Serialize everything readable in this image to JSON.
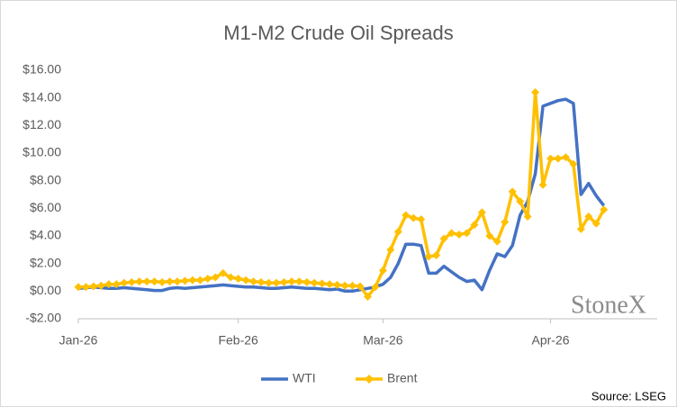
{
  "chart_data": {
    "type": "line",
    "title": "M1-M2 Crude Oil Spreads",
    "categories": [
      "Jan-26",
      null,
      null,
      null,
      null,
      null,
      null,
      null,
      null,
      null,
      null,
      null,
      null,
      null,
      null,
      null,
      null,
      null,
      null,
      null,
      null,
      "Feb-26",
      null,
      null,
      null,
      null,
      null,
      null,
      null,
      null,
      null,
      null,
      null,
      null,
      null,
      null,
      null,
      null,
      null,
      null,
      "Mar-26",
      null,
      null,
      null,
      null,
      null,
      null,
      null,
      null,
      null,
      null,
      null,
      null,
      null,
      null,
      null,
      null,
      null,
      null,
      null,
      null,
      null,
      "Apr-26",
      null,
      null,
      null,
      null,
      null,
      null,
      null
    ],
    "series": [
      {
        "name": "WTI",
        "color": "#4472c4",
        "values": [
          0.2,
          0.25,
          0.3,
          0.25,
          0.2,
          0.2,
          0.25,
          0.2,
          0.15,
          0.1,
          0.05,
          0.05,
          0.2,
          0.25,
          0.2,
          0.25,
          0.3,
          0.35,
          0.4,
          0.45,
          0.4,
          0.35,
          0.3,
          0.3,
          0.25,
          0.2,
          0.2,
          0.25,
          0.3,
          0.25,
          0.2,
          0.2,
          0.15,
          0.1,
          0.15,
          0.0,
          0.0,
          0.1,
          0.2,
          0.3,
          0.5,
          1.0,
          2.0,
          3.4,
          3.4,
          3.3,
          1.3,
          1.3,
          1.8,
          1.4,
          1.0,
          0.7,
          0.8,
          0.1,
          1.5,
          2.7,
          2.5,
          3.3,
          5.5,
          6.5,
          8.5,
          13.4,
          13.6,
          13.8,
          13.9,
          13.6,
          7.0,
          7.8,
          6.9,
          6.2
        ]
      },
      {
        "name": "Brent",
        "color": "#ffc000",
        "marker": "diamond",
        "values": [
          0.3,
          0.3,
          0.35,
          0.4,
          0.5,
          0.5,
          0.6,
          0.65,
          0.7,
          0.7,
          0.7,
          0.65,
          0.7,
          0.7,
          0.75,
          0.8,
          0.8,
          0.9,
          1.0,
          1.3,
          1.0,
          0.9,
          0.8,
          0.7,
          0.65,
          0.6,
          0.6,
          0.65,
          0.7,
          0.7,
          0.65,
          0.6,
          0.55,
          0.5,
          0.45,
          0.4,
          0.4,
          0.35,
          -0.4,
          0.3,
          1.5,
          3.0,
          4.3,
          5.5,
          5.3,
          5.2,
          2.5,
          2.6,
          3.8,
          4.2,
          4.1,
          4.2,
          4.8,
          5.7,
          4.0,
          3.6,
          5.0,
          7.2,
          6.5,
          5.4,
          14.4,
          7.7,
          9.6,
          9.6,
          9.7,
          9.2,
          4.5,
          5.4,
          4.9,
          5.9
        ]
      }
    ],
    "ylim": [
      -2,
      16
    ],
    "yticks": [
      {
        "value": -2,
        "label": "-$2.00"
      },
      {
        "value": 0,
        "label": "$0.00"
      },
      {
        "value": 2,
        "label": "$2.00"
      },
      {
        "value": 4,
        "label": "$4.00"
      },
      {
        "value": 6,
        "label": "$6.00"
      },
      {
        "value": 8,
        "label": "$8.00"
      },
      {
        "value": 10,
        "label": "$10.00"
      },
      {
        "value": 12,
        "label": "$12.00"
      },
      {
        "value": 14,
        "label": "$14.00"
      },
      {
        "value": 16,
        "label": "$16.00"
      }
    ],
    "grid": false,
    "legend": "bottom",
    "watermark": "StoneX",
    "source": "Source: LSEG"
  }
}
